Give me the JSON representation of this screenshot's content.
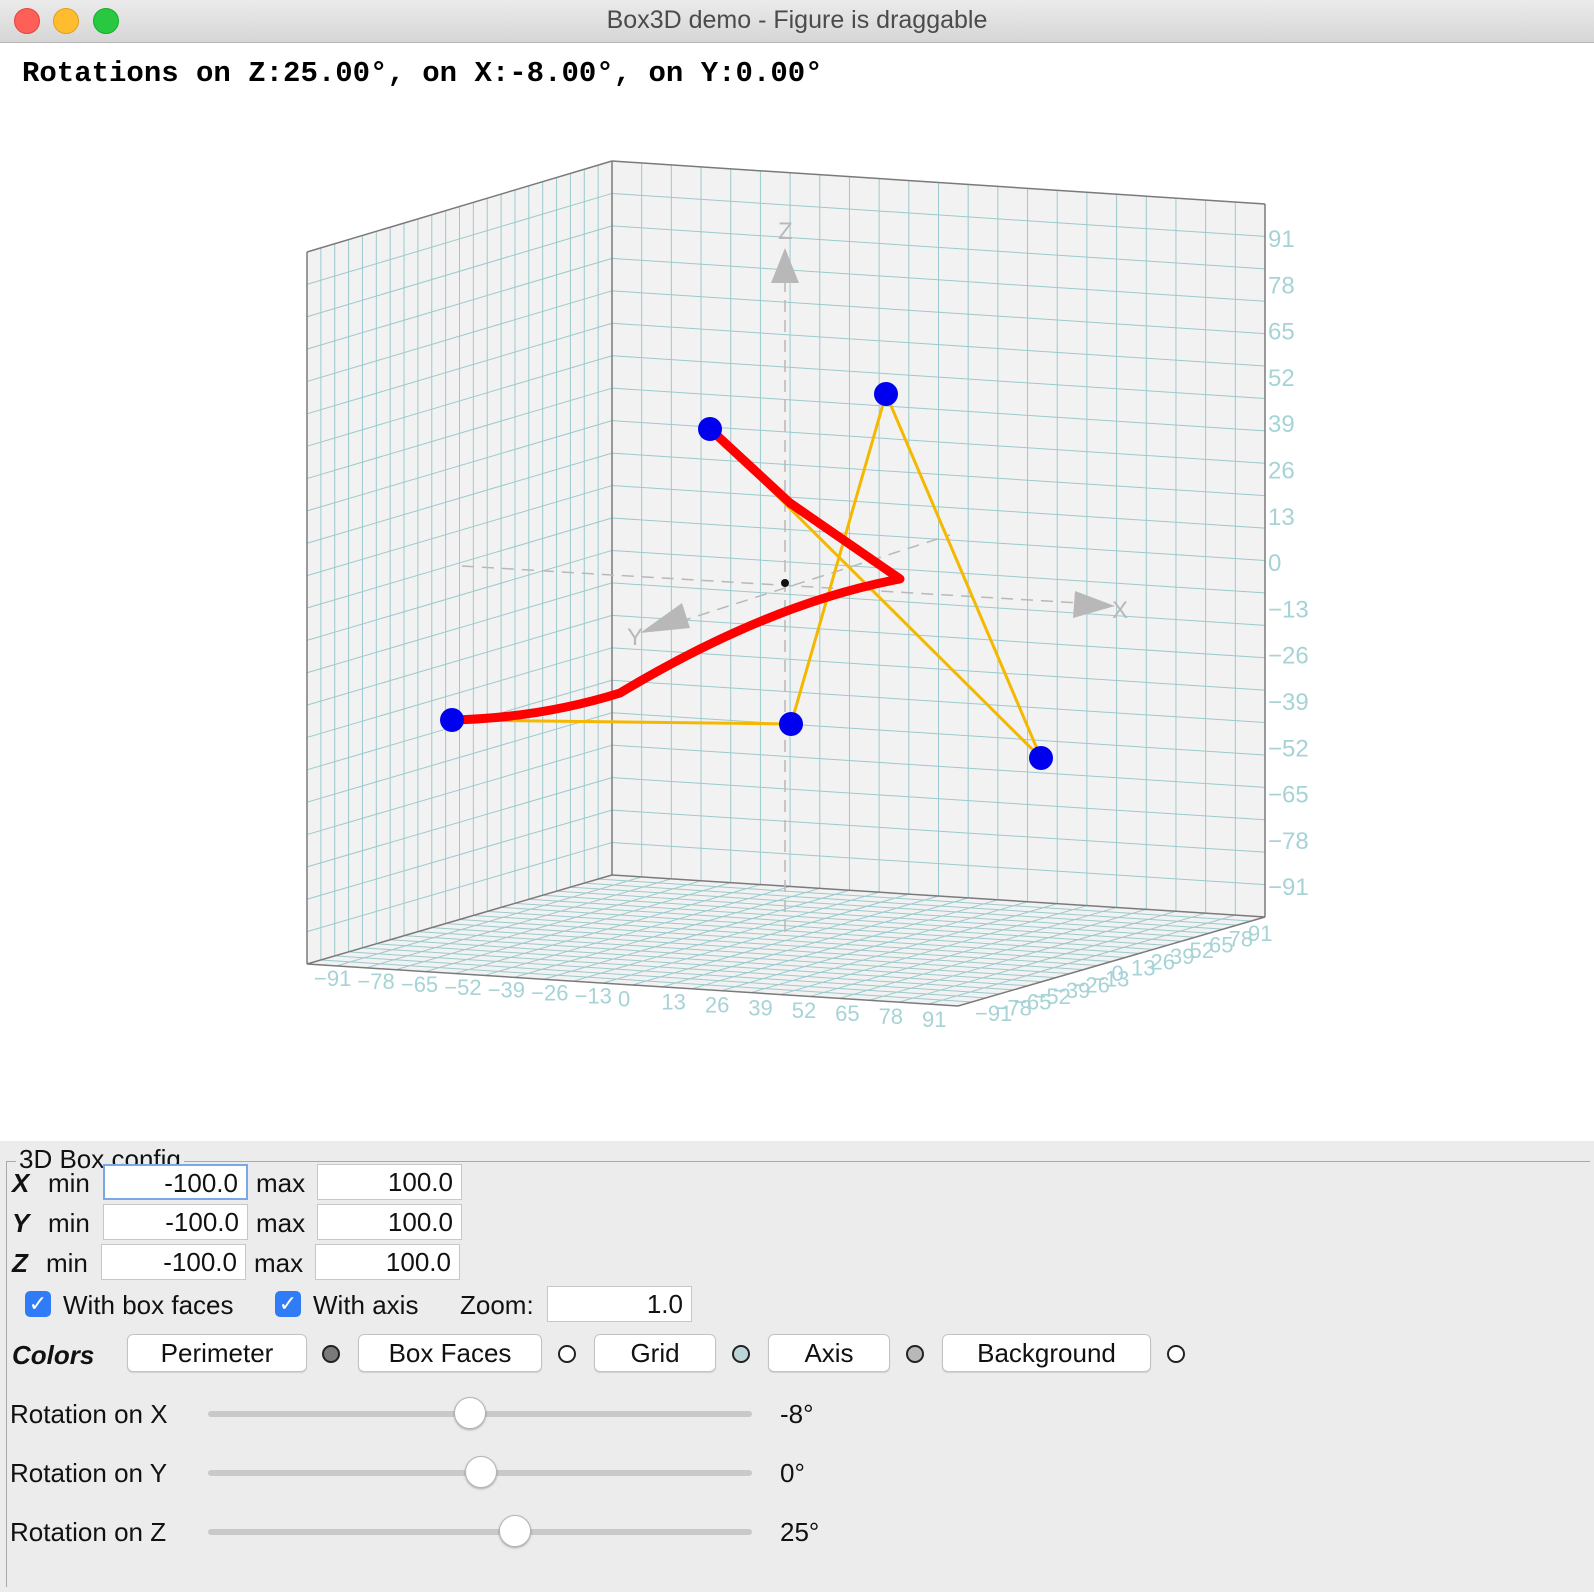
{
  "window": {
    "title": "Box3D demo - Figure is draggable"
  },
  "canvas": {
    "readout": "Rotations on Z:25.00°, on X:-8.00°, on Y:0.00°",
    "axis_labels": {
      "x": "X",
      "y": "Y",
      "z": "Z"
    },
    "z_ticks": [
      "91",
      "78",
      "65",
      "52",
      "39",
      "26",
      "13",
      "0",
      "−13",
      "−26",
      "−39",
      "−52",
      "−65",
      "−78",
      "−91"
    ],
    "x_ticks": [
      "−91",
      "−78",
      "−65",
      "−52",
      "−39",
      "−26",
      "−13",
      "0",
      "13",
      "26",
      "39",
      "52",
      "65",
      "78",
      "91"
    ],
    "y_ticks": [
      "91",
      "78",
      "65",
      "52",
      "39",
      "26",
      "13",
      "0",
      "−13",
      "−26",
      "−39",
      "−52",
      "−65",
      "−78",
      "−91"
    ],
    "colors": {
      "grid": "#9cc9cc",
      "box_face": "#f2f2f2",
      "perimeter": "#7a7a7a",
      "axis": "#b8b8b8",
      "tick_text": "#a6d3d6",
      "path": "#ff0000",
      "edges": "#f5b800",
      "points": "#0000ee"
    }
  },
  "config": {
    "legend": "3D Box config",
    "x": {
      "letter": "X",
      "min_label": "min",
      "min": "-100.0",
      "max_label": "max",
      "max": "100.0"
    },
    "y": {
      "letter": "Y",
      "min_label": "min",
      "min": "-100.0",
      "max_label": "max",
      "max": "100.0"
    },
    "z": {
      "letter": "Z",
      "min_label": "min",
      "min": "-100.0",
      "max_label": "max",
      "max": "100.0"
    },
    "with_box_faces": {
      "label": "With box faces",
      "checked": true
    },
    "with_axis": {
      "label": "With axis",
      "checked": true
    },
    "zoom": {
      "label": "Zoom:",
      "value": "1.0"
    },
    "colors": {
      "label": "Colors",
      "perimeter": {
        "label": "Perimeter",
        "swatch": "#7a7a7a"
      },
      "box_faces": {
        "label": "Box Faces",
        "swatch": "#ffffff"
      },
      "grid": {
        "label": "Grid",
        "swatch": "#bcd6d8"
      },
      "axis": {
        "label": "Axis",
        "swatch": "#b8b8b8"
      },
      "background": {
        "label": "Background",
        "swatch": "#ffffff"
      }
    },
    "rotation_x": {
      "label": "Rotation on X",
      "value_text": "-8°",
      "value": -8,
      "min": -180,
      "max": 180
    },
    "rotation_y": {
      "label": "Rotation on Y",
      "value_text": "0°",
      "value": 0,
      "min": -180,
      "max": 180
    },
    "rotation_z": {
      "label": "Rotation on Z",
      "value_text": "25°",
      "value": 25,
      "min": -180,
      "max": 180
    }
  }
}
